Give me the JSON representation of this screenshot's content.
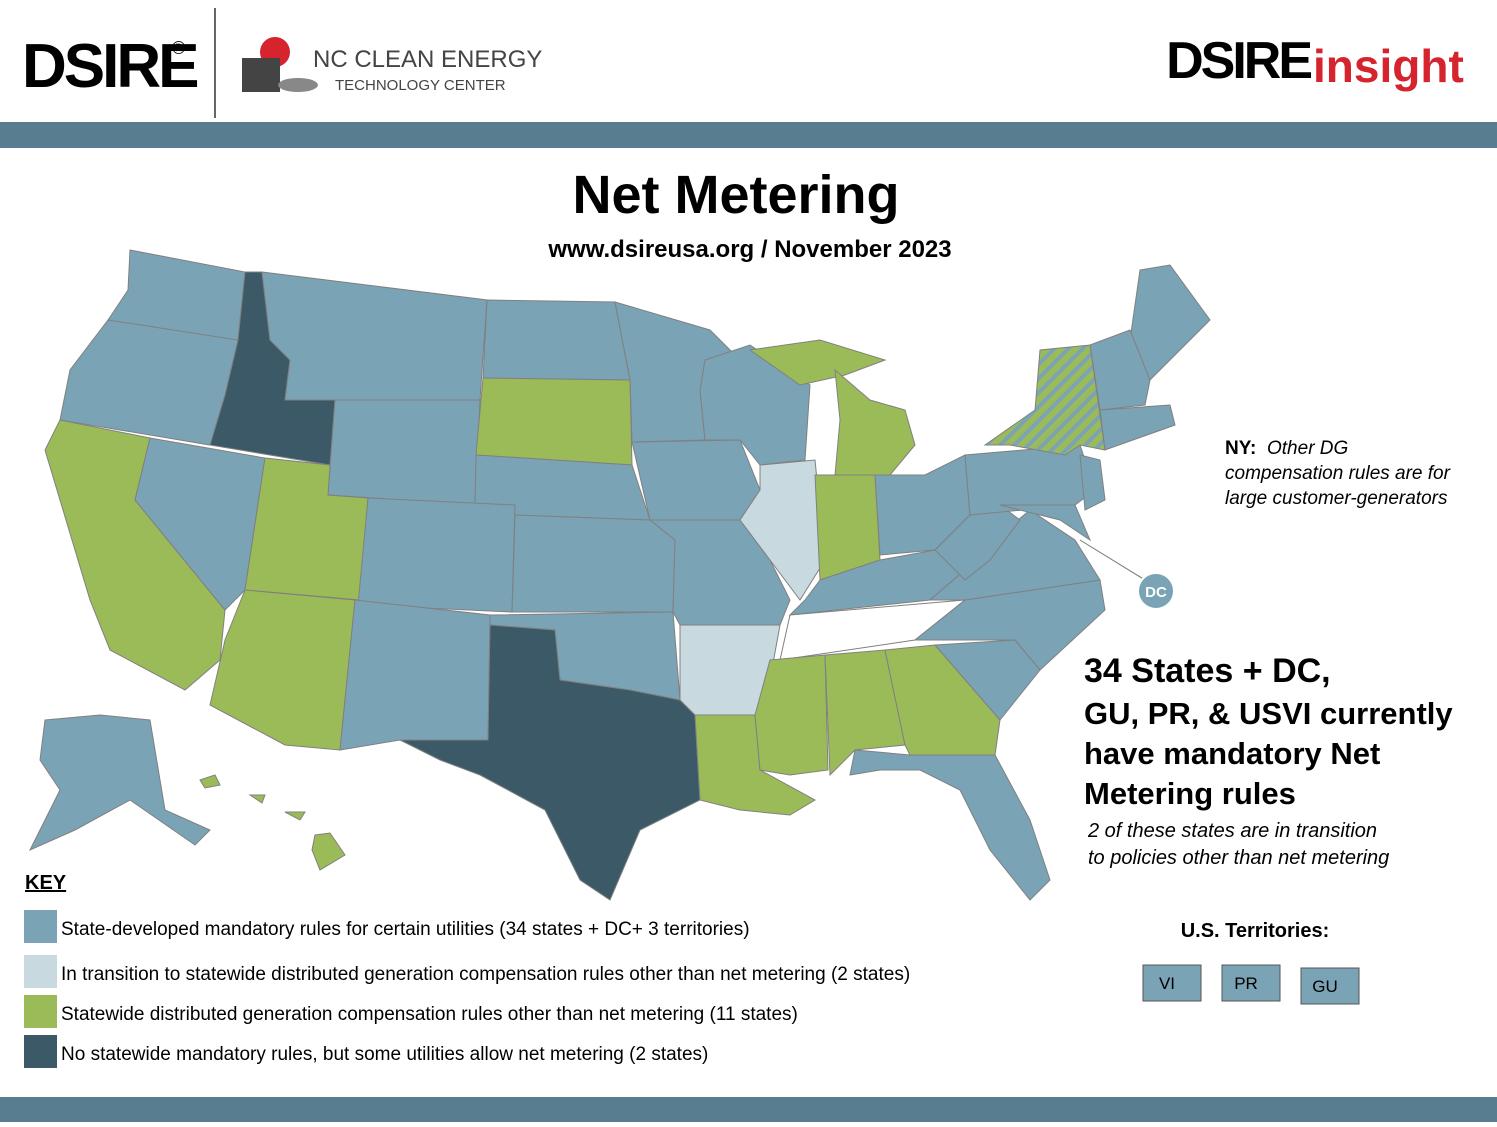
{
  "header": {
    "logo": "DSIRE",
    "registered": "®",
    "partner_line1": "NC CLEAN ENERGY",
    "partner_line2": "TECHNOLOGY CENTER",
    "brand_left": "DSIRE",
    "brand_right": "insight"
  },
  "title": "Net Metering",
  "subtitle": "www.dsireusa.org / November 2023",
  "ny_note": {
    "label": "NY:",
    "lines": [
      "Other DG",
      "compensation rules are for",
      "large customer-generators"
    ]
  },
  "dc_label": "DC",
  "headline": [
    "34 States + DC,",
    "GU, PR, & USVI currently",
    "have mandatory Net",
    "Metering rules"
  ],
  "subnote": [
    "2 of these states are in transition",
    "to policies other than net metering"
  ],
  "territories": {
    "title": "U.S. Territories:",
    "items": [
      "VI",
      "PR",
      "GU"
    ]
  },
  "key": {
    "title": "KEY",
    "items": [
      "State-developed mandatory rules for certain utilities (34 states + DC+ 3 territories)",
      "In transition to statewide distributed generation compensation rules other than net metering (2 states)",
      "Statewide distributed generation compensation rules other than net metering (11 states)",
      "No statewide mandatory rules, but some utilities allow net metering (2 states)"
    ]
  }
}
